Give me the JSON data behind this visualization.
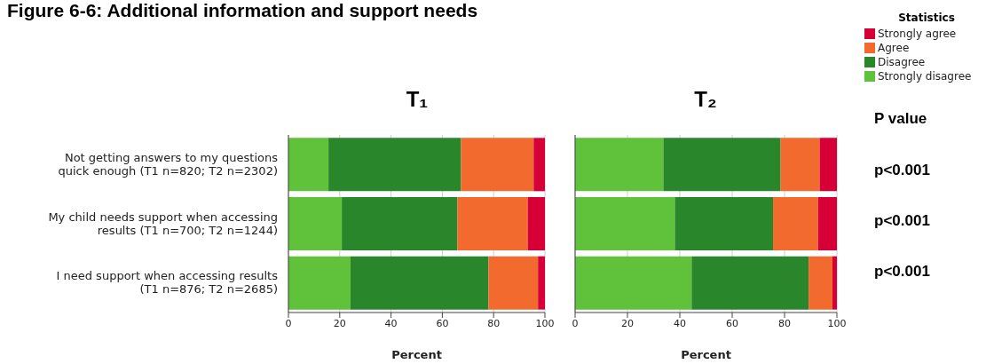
{
  "chart_data": [
    {
      "type": "bar",
      "title": "Figure 6-6: Additional information and support needs",
      "subtitle": "T₁",
      "orientation": "horizontal",
      "stacked": true,
      "categories": [
        "Not getting answers to my questions quick enough (T1 n=820; T2 n=2302)",
        "My child needs support when accessing results (T1 n=700; T2 n=1244)",
        "I need support when accessing results (T1 n=876; T2 n=2685)"
      ],
      "series": [
        {
          "name": "Strongly disagree",
          "color": "#60c13a",
          "values": [
            15.6,
            20.8,
            24.2
          ]
        },
        {
          "name": "Disagree",
          "color": "#2a862b",
          "values": [
            51.7,
            45.1,
            53.8
          ]
        },
        {
          "name": "Agree",
          "color": "#f26a2e",
          "values": [
            28.3,
            27.4,
            19.3
          ]
        },
        {
          "name": "Strongly agree",
          "color": "#d60036",
          "values": [
            4.4,
            6.7,
            2.7
          ]
        }
      ],
      "xlim": [
        0,
        100
      ],
      "xticks": [
        0,
        20,
        40,
        60,
        80,
        100
      ],
      "xlabel": "Percent",
      "grid": "x",
      "legend": "top right",
      "legend_title": "Statistics"
    },
    {
      "type": "bar",
      "title": "T₂",
      "orientation": "horizontal",
      "stacked": true,
      "tick_labels": "x",
      "categories": [
        null,
        null,
        null
      ],
      "series": [
        {
          "color": "#60c13a",
          "values": [
            33.7,
            38.1,
            44.5
          ]
        },
        {
          "color": "#2a862b",
          "values": [
            44.8,
            37.5,
            44.7
          ]
        },
        {
          "color": "#f26a2e",
          "values": [
            14.9,
            17.2,
            9.1
          ]
        },
        {
          "color": "#d60036",
          "values": [
            6.6,
            7.2,
            1.7
          ]
        }
      ],
      "xlim": [
        0,
        100
      ],
      "xticks": [
        0,
        20,
        40,
        60,
        80,
        100
      ],
      "xlabel": "Percent",
      "grid": "x",
      "annotations": [
        "P value",
        "p<0.001",
        "p<0.001",
        "p<0.001"
      ]
    }
  ]
}
